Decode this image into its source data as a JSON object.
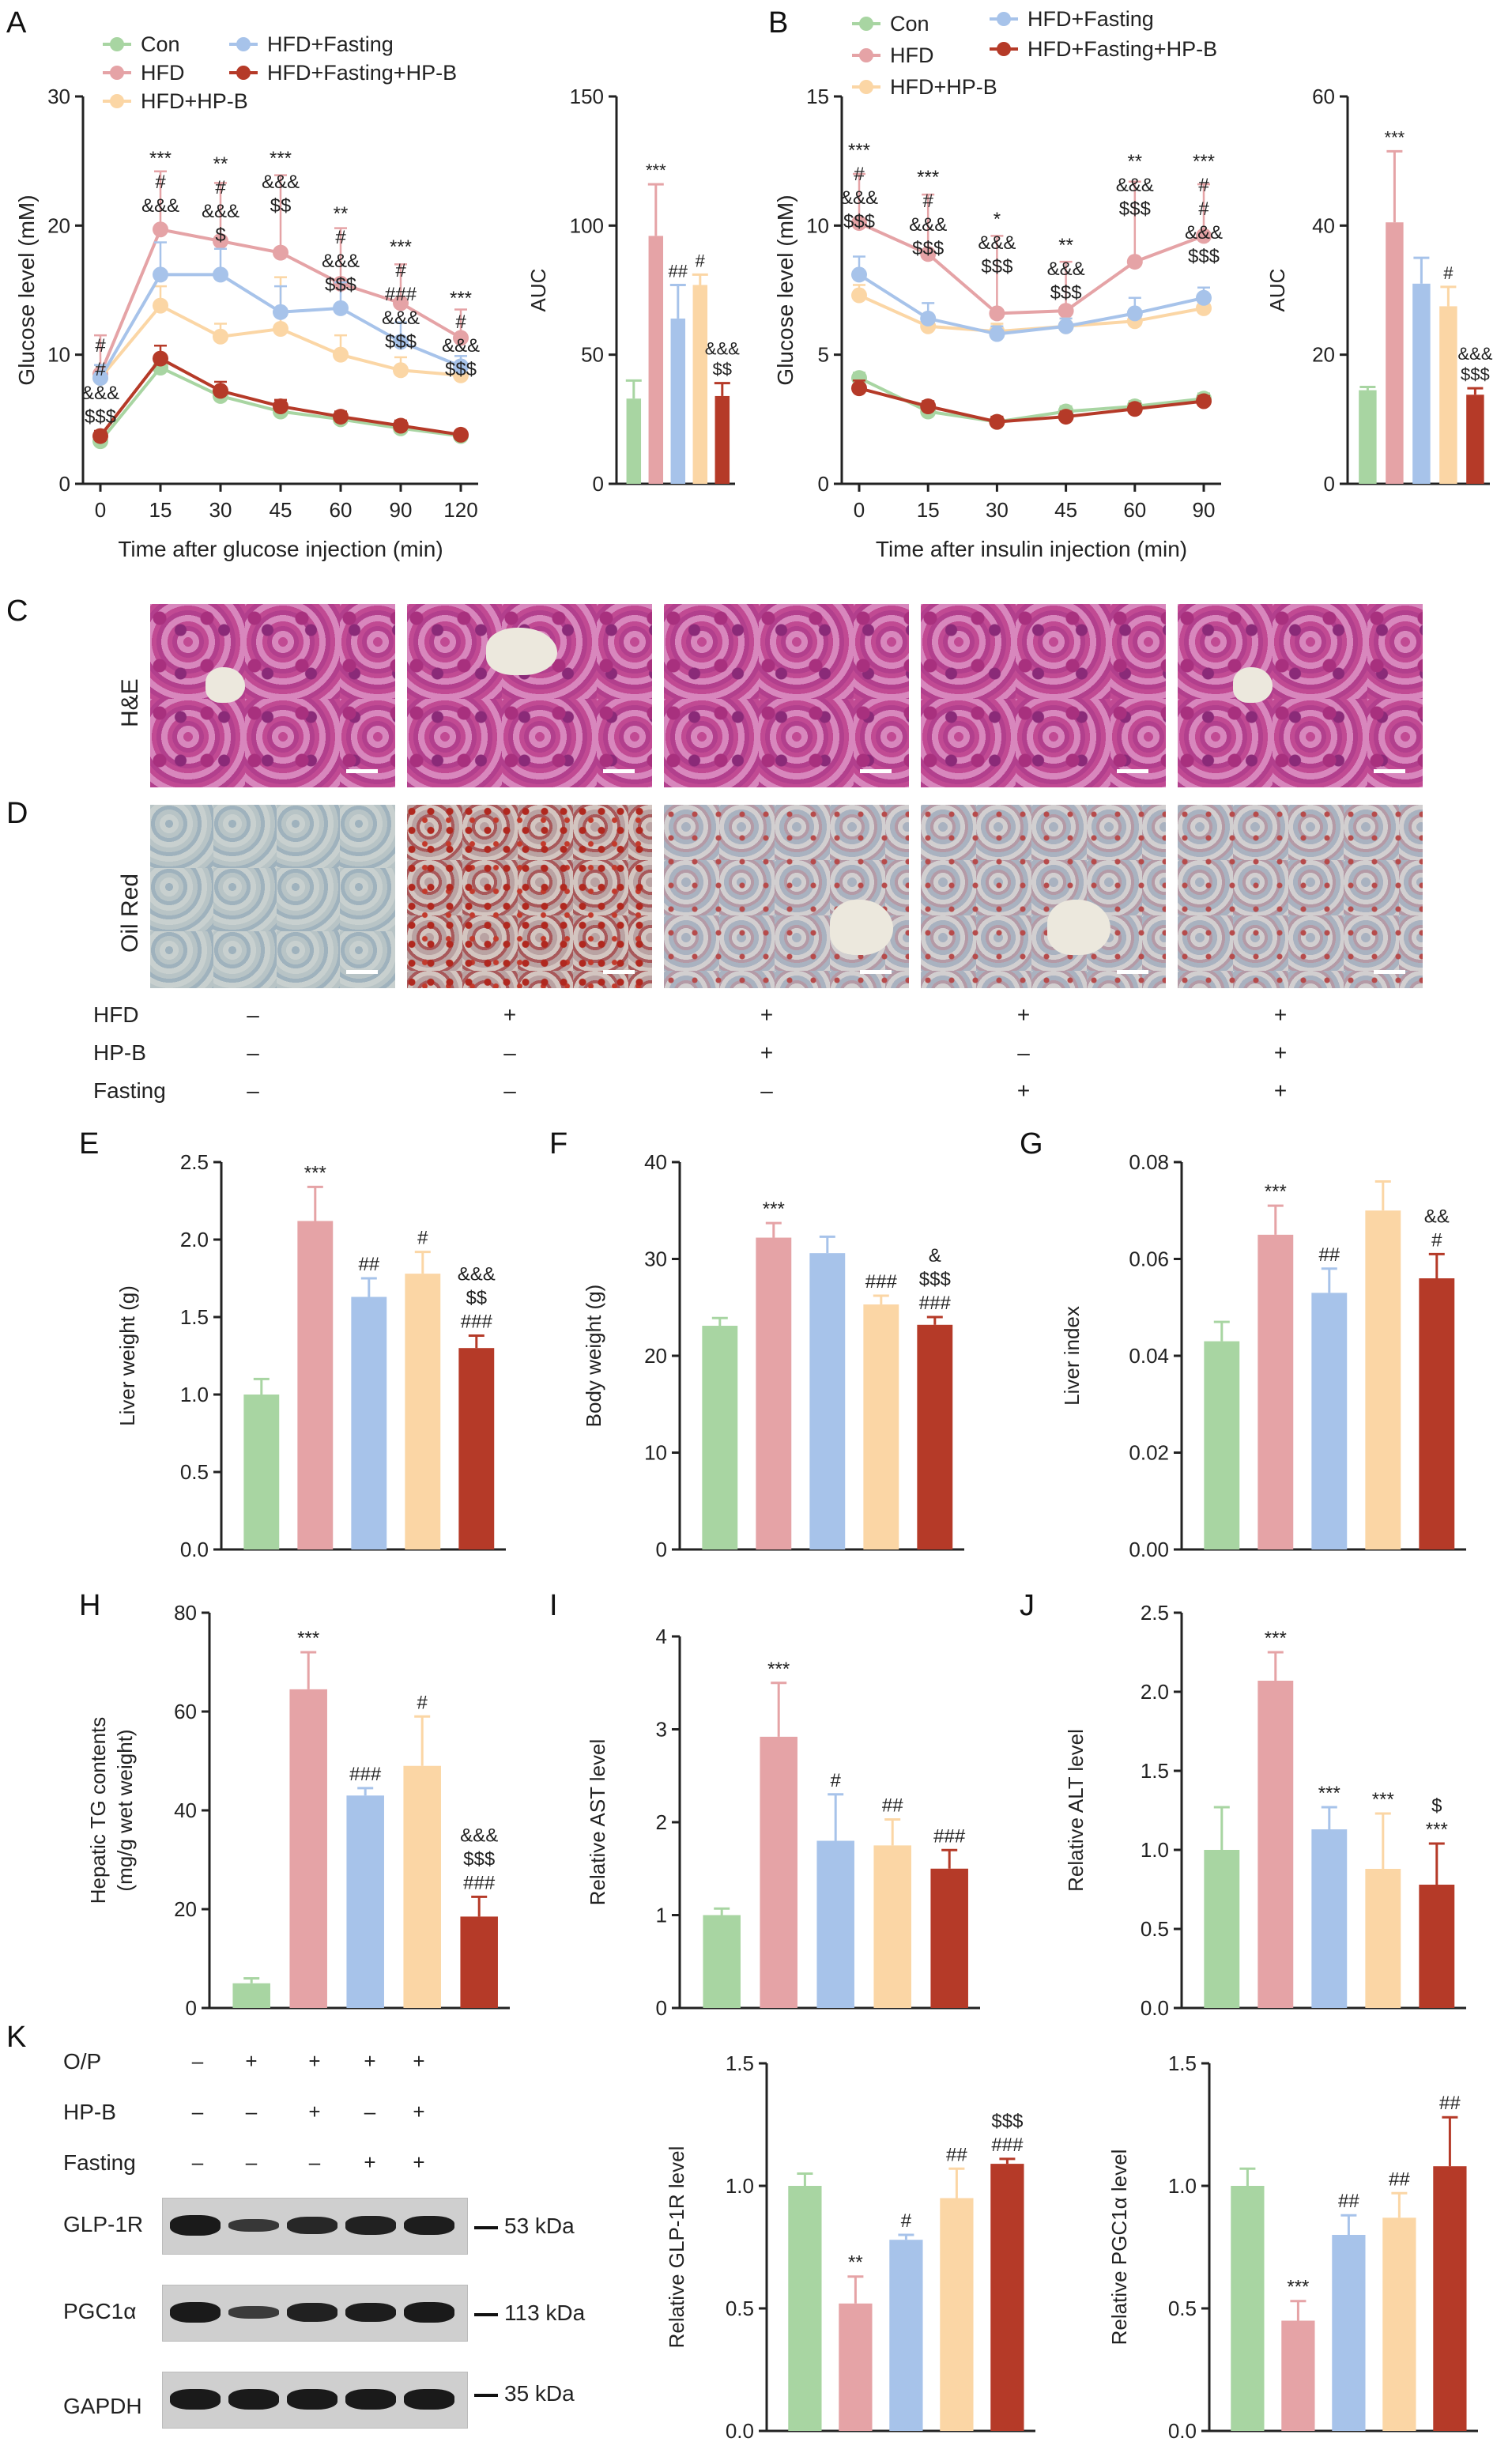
{
  "colors": {
    "Con": "#a8d5a2",
    "HFD": "#e5a3a6",
    "HFD_Fasting": "#a7c3ea",
    "HFD_HPB": "#fbd6a5",
    "HFD_Fasting_HPB": "#b53a28"
  },
  "panels": {
    "A": "A",
    "B": "B",
    "C": "C",
    "D": "D",
    "E": "E",
    "F": "F",
    "G": "G",
    "H": "H",
    "I": "I",
    "J": "J",
    "K": "K"
  },
  "histology": {
    "row_labels": [
      "H&E",
      "Oil Red"
    ],
    "conditions": {
      "labels": [
        "HFD",
        "HP-B",
        "Fasting"
      ],
      "values": [
        [
          "–",
          "+",
          "+",
          "+",
          "+"
        ],
        [
          "–",
          "–",
          "+",
          "–",
          "+"
        ],
        [
          "–",
          "–",
          "–",
          "+",
          "+"
        ]
      ]
    }
  },
  "western": {
    "cond_labels": [
      "O/P",
      "HP-B",
      "Fasting"
    ],
    "cond_values": [
      [
        "–",
        "+",
        "+",
        "+",
        "+"
      ],
      [
        "–",
        "–",
        "+",
        "–",
        "+"
      ],
      [
        "–",
        "–",
        "–",
        "+",
        "+"
      ]
    ],
    "proteins": [
      "GLP-1R",
      "PGC1α",
      "GAPDH"
    ],
    "kda": [
      "53 kDa",
      "113 kDa",
      "35 kDa"
    ]
  },
  "chart_data": [
    {
      "id": "A-line",
      "type": "line",
      "xlabel": "Time after glucose injection (min)",
      "ylabel": "Glucose level (mM)",
      "x": [
        0,
        15,
        30,
        45,
        60,
        90,
        120
      ],
      "ylim": [
        0,
        30
      ],
      "yticks": [
        0,
        10,
        20,
        30
      ],
      "legend": [
        "Con",
        "HFD",
        "HFD+HP-B",
        "HFD+Fasting",
        "HFD+Fasting+HP-B"
      ],
      "series": [
        {
          "name": "Con",
          "values": [
            3.3,
            9.0,
            6.8,
            5.6,
            5.0,
            4.3,
            3.7
          ],
          "err": [
            0.3,
            0.6,
            0.5,
            0.4,
            0.4,
            0.3,
            0.3
          ]
        },
        {
          "name": "HFD",
          "values": [
            8.5,
            19.7,
            18.8,
            17.9,
            15.5,
            14.0,
            11.3
          ],
          "err": [
            3.0,
            4.5,
            4.5,
            6.0,
            4.3,
            3.0,
            2.2
          ]
        },
        {
          "name": "HFD+HP-B",
          "values": [
            8.2,
            13.8,
            11.4,
            12.0,
            10.0,
            8.8,
            8.4
          ],
          "err": [
            1.0,
            1.5,
            1.0,
            4.0,
            1.5,
            1.0,
            0.8
          ]
        },
        {
          "name": "HFD+Fasting",
          "values": [
            8.2,
            16.2,
            16.2,
            13.3,
            13.6,
            11.0,
            9.1
          ],
          "err": [
            1.0,
            2.5,
            2.0,
            2.0,
            2.0,
            1.5,
            0.8
          ]
        },
        {
          "name": "HFD+Fasting+HP-B",
          "values": [
            3.7,
            9.7,
            7.2,
            6.0,
            5.2,
            4.5,
            3.8
          ],
          "err": [
            0.4,
            1.0,
            0.7,
            0.5,
            0.4,
            0.4,
            0.3
          ]
        }
      ],
      "annotations": [
        {
          "x": 0,
          "lines": [
            "#",
            "#",
            "&&&",
            "$$$"
          ]
        },
        {
          "x": 15,
          "lines": [
            "***",
            "#",
            "&&&"
          ]
        },
        {
          "x": 30,
          "lines": [
            "**",
            "#",
            "&&&",
            "$"
          ]
        },
        {
          "x": 45,
          "lines": [
            "***",
            "&&&",
            "$$"
          ]
        },
        {
          "x": 60,
          "lines": [
            "**",
            "#",
            "&&&",
            "$$$"
          ]
        },
        {
          "x": 90,
          "lines": [
            "***",
            "#",
            "###",
            "&&&",
            "$$$"
          ]
        },
        {
          "x": 120,
          "lines": [
            "***",
            "#",
            "&&&",
            "$$$"
          ]
        }
      ]
    },
    {
      "id": "A-bar",
      "type": "bar",
      "ylabel": "AUC",
      "ylim": [
        0,
        150
      ],
      "yticks": [
        0,
        50,
        100,
        150
      ],
      "values": [
        33,
        96,
        64,
        77,
        34
      ],
      "err": [
        7,
        20,
        13,
        4,
        5
      ],
      "labels": [
        "",
        "***",
        "##",
        "#",
        "&&&|$$"
      ]
    },
    {
      "id": "B-line",
      "type": "line",
      "xlabel": "Time after insulin injection (min)",
      "ylabel": "Glucose level (mM)",
      "x": [
        0,
        15,
        30,
        45,
        60,
        90
      ],
      "ylim": [
        0,
        15
      ],
      "yticks": [
        0,
        5,
        10,
        15
      ],
      "legend": [
        "Con",
        "HFD",
        "HFD+HP-B",
        "HFD+Fasting",
        "HFD+Fasting+HP-B"
      ],
      "series": [
        {
          "name": "Con",
          "values": [
            4.1,
            2.8,
            2.4,
            2.8,
            3.0,
            3.3
          ],
          "err": [
            0.2,
            0.2,
            0.2,
            0.2,
            0.2,
            0.2
          ]
        },
        {
          "name": "HFD",
          "values": [
            10.1,
            8.9,
            6.6,
            6.7,
            8.6,
            9.6
          ],
          "err": [
            1.9,
            2.3,
            3.0,
            1.9,
            3.1,
            2.0
          ]
        },
        {
          "name": "HFD+HP-B",
          "values": [
            7.3,
            6.1,
            5.9,
            6.1,
            6.3,
            6.8
          ],
          "err": [
            0.4,
            0.4,
            0.3,
            0.3,
            0.4,
            0.4
          ]
        },
        {
          "name": "HFD+Fasting",
          "values": [
            8.1,
            6.4,
            5.8,
            6.1,
            6.6,
            7.2
          ],
          "err": [
            0.7,
            0.6,
            0.3,
            0.3,
            0.6,
            0.4
          ]
        },
        {
          "name": "HFD+Fasting+HP-B",
          "values": [
            3.7,
            3.0,
            2.4,
            2.6,
            2.9,
            3.2
          ],
          "err": [
            0.3,
            0.2,
            0.2,
            0.2,
            0.2,
            0.2
          ]
        }
      ],
      "annotations": [
        {
          "x": 0,
          "lines": [
            "***",
            "#",
            "&&&",
            "$$$"
          ]
        },
        {
          "x": 15,
          "lines": [
            "***",
            "#",
            "&&&",
            "$$$"
          ]
        },
        {
          "x": 30,
          "lines": [
            "*",
            "&&&",
            "$$$"
          ]
        },
        {
          "x": 45,
          "lines": [
            "**",
            "&&&",
            "$$$"
          ]
        },
        {
          "x": 60,
          "lines": [
            "**",
            "&&&",
            "$$$"
          ]
        },
        {
          "x": 90,
          "lines": [
            "***",
            "#",
            "#",
            "&&&",
            "$$$"
          ]
        }
      ]
    },
    {
      "id": "B-bar",
      "type": "bar",
      "ylabel": "AUC",
      "ylim": [
        0,
        60
      ],
      "yticks": [
        0,
        20,
        40,
        60
      ],
      "values": [
        14.5,
        40.5,
        31,
        27.5,
        13.8
      ],
      "err": [
        0.5,
        11,
        4,
        3,
        1
      ],
      "labels": [
        "",
        "***",
        "",
        "#",
        "&&&|$$$"
      ]
    },
    {
      "id": "E",
      "type": "bar",
      "ylabel": "Liver weight (g)",
      "ylim": [
        0,
        2.5
      ],
      "yticks": [
        0.0,
        0.5,
        1.0,
        1.5,
        2.0,
        2.5
      ],
      "decimals": 1,
      "values": [
        1.0,
        2.12,
        1.63,
        1.78,
        1.3
      ],
      "err": [
        0.1,
        0.22,
        0.12,
        0.14,
        0.08
      ],
      "labels": [
        "",
        "***",
        "##",
        "#",
        "&&&|$$|###"
      ]
    },
    {
      "id": "F",
      "type": "bar",
      "ylabel": "Body weight (g)",
      "ylim": [
        0,
        40
      ],
      "yticks": [
        0,
        10,
        20,
        30,
        40
      ],
      "decimals": 0,
      "values": [
        23.1,
        32.2,
        30.6,
        25.3,
        23.2
      ],
      "err": [
        0.8,
        1.5,
        1.7,
        0.9,
        0.8
      ],
      "labels": [
        "",
        "***",
        "",
        "###",
        "&|$$$|###"
      ]
    },
    {
      "id": "G",
      "type": "bar",
      "ylabel": "Liver index",
      "ylim": [
        0,
        0.08
      ],
      "yticks": [
        0.0,
        0.02,
        0.04,
        0.06,
        0.08
      ],
      "decimals": 2,
      "values": [
        0.043,
        0.065,
        0.053,
        0.07,
        0.056
      ],
      "err": [
        0.004,
        0.006,
        0.005,
        0.006,
        0.005
      ],
      "labels": [
        "",
        "***",
        "##",
        "",
        "&&|#"
      ]
    },
    {
      "id": "H",
      "type": "bar",
      "ylabel": "Hepatic TG contents",
      "ylabel2": "(mg/g wet weight)",
      "ylim": [
        0,
        80
      ],
      "yticks": [
        0,
        20,
        40,
        60,
        80
      ],
      "decimals": 0,
      "values": [
        5,
        64.5,
        43,
        49,
        18.5
      ],
      "err": [
        1,
        7.5,
        1.5,
        10,
        4
      ],
      "labels": [
        "",
        "***",
        "###",
        "#",
        "&&&|$$$|###"
      ]
    },
    {
      "id": "I",
      "type": "bar",
      "ylabel": "Relative AST level",
      "ylim": [
        0,
        4
      ],
      "yticks": [
        0,
        1,
        2,
        3,
        4
      ],
      "decimals": 0,
      "values": [
        1.0,
        2.92,
        1.8,
        1.75,
        1.5
      ],
      "err": [
        0.07,
        0.58,
        0.5,
        0.28,
        0.2
      ],
      "labels": [
        "",
        "***",
        "#",
        "##",
        "###"
      ]
    },
    {
      "id": "J",
      "type": "bar",
      "ylabel": "Relative ALT level",
      "ylim": [
        0,
        2.5
      ],
      "yticks": [
        0.0,
        0.5,
        1.0,
        1.5,
        2.0,
        2.5
      ],
      "decimals": 1,
      "values": [
        1.0,
        2.07,
        1.13,
        0.88,
        0.78
      ],
      "err": [
        0.27,
        0.18,
        0.14,
        0.35,
        0.26
      ],
      "labels": [
        "",
        "***",
        "***",
        "***",
        "$|***"
      ]
    },
    {
      "id": "K-glp",
      "type": "bar",
      "ylabel": "Relative GLP-1R level",
      "ylim": [
        0,
        1.5
      ],
      "yticks": [
        0.0,
        0.5,
        1.0,
        1.5
      ],
      "decimals": 1,
      "values": [
        1.0,
        0.52,
        0.78,
        0.95,
        1.09
      ],
      "err": [
        0.05,
        0.11,
        0.02,
        0.12,
        0.02
      ],
      "labels": [
        "",
        "**",
        "#",
        "##",
        "$$$|###"
      ]
    },
    {
      "id": "K-pgc",
      "type": "bar",
      "ylabel": "Relative PGC1α level",
      "ylim": [
        0,
        1.5
      ],
      "yticks": [
        0.0,
        0.5,
        1.0,
        1.5
      ],
      "decimals": 1,
      "values": [
        1.0,
        0.45,
        0.8,
        0.87,
        1.08
      ],
      "err": [
        0.07,
        0.08,
        0.08,
        0.1,
        0.2
      ],
      "labels": [
        "",
        "***",
        "##",
        "##",
        "##"
      ]
    }
  ]
}
